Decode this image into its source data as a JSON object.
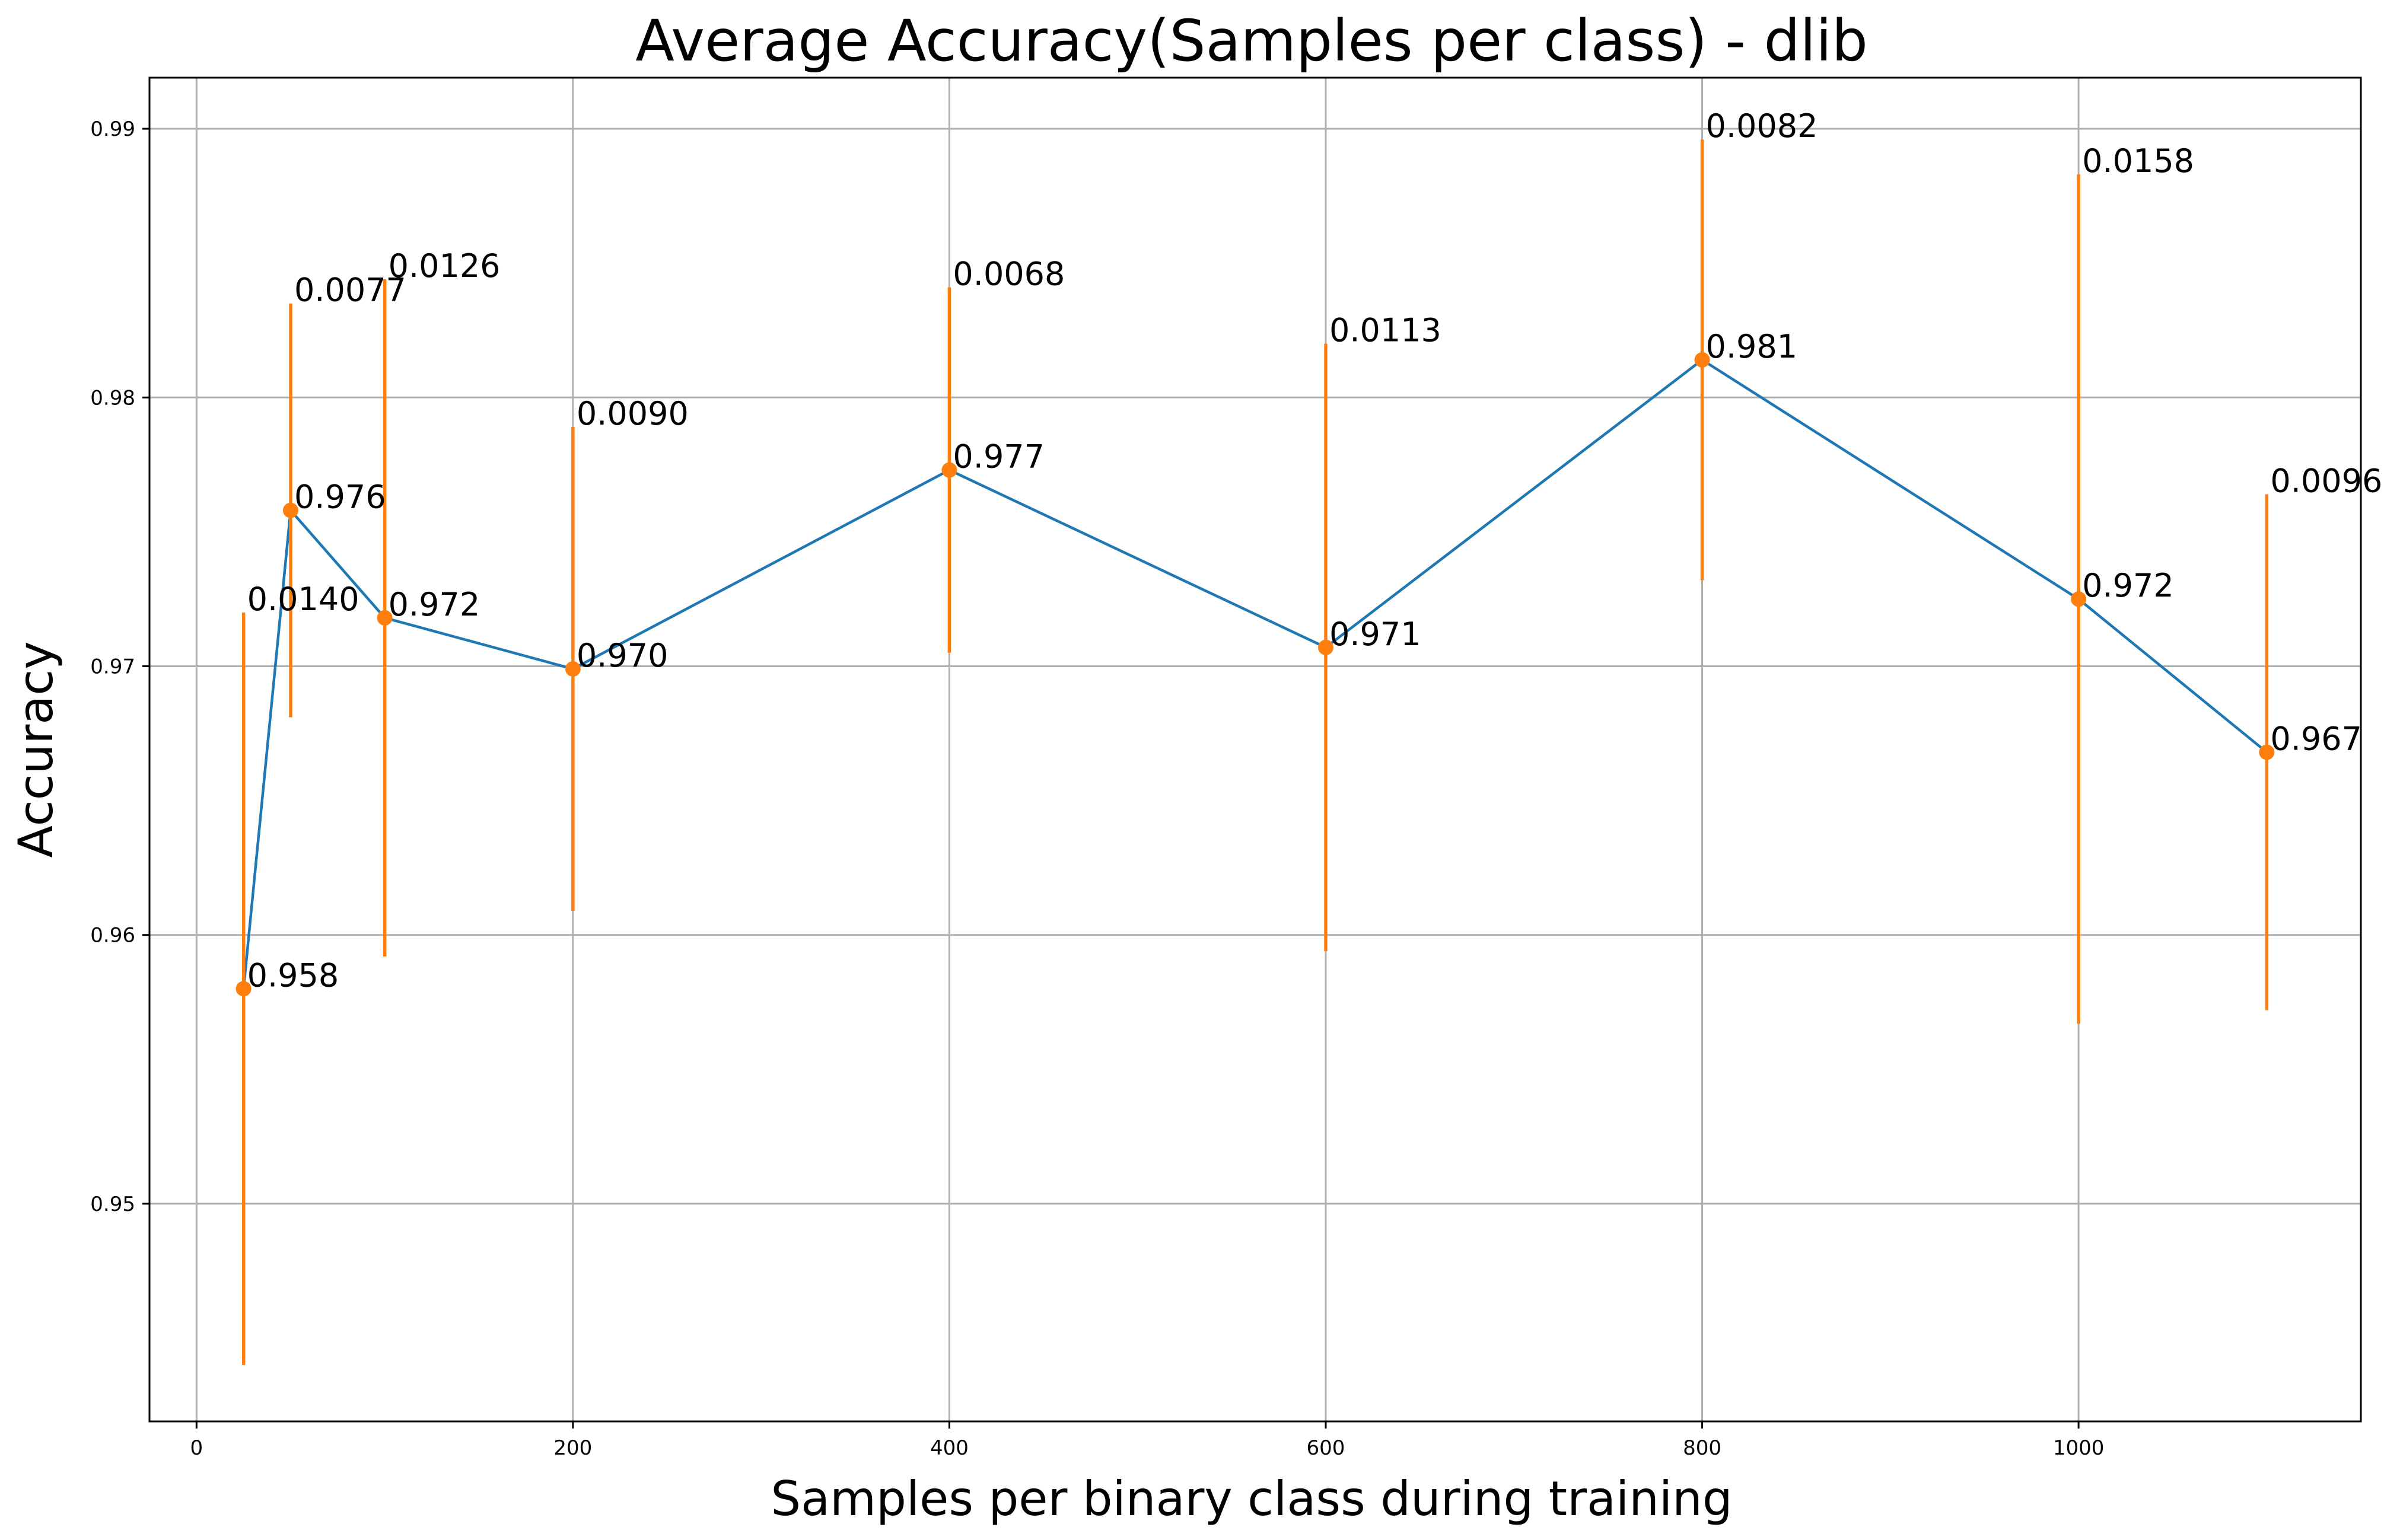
{
  "chart_data": {
    "type": "line",
    "title": "Average Accuracy(Samples per class) - dlib",
    "xlabel": "Samples per binary class during training",
    "ylabel": "Accuracy",
    "xlim": [
      -25,
      1150
    ],
    "ylim": [
      0.9419,
      0.9919
    ],
    "x_ticks": [
      0,
      200,
      400,
      600,
      800,
      1000
    ],
    "x_tick_labels": [
      "0",
      "200",
      "400",
      "600",
      "800",
      "1000"
    ],
    "y_ticks": [
      0.95,
      0.96,
      0.97,
      0.98,
      0.99
    ],
    "y_tick_labels": [
      "0.95",
      "0.96",
      "0.97",
      "0.98",
      "0.99"
    ],
    "grid": true,
    "line_color": "#1f77b4",
    "marker_color": "#ff7f0e",
    "errorbar_color": "#ff7f0e",
    "series": [
      {
        "x": [
          25,
          50,
          100,
          200,
          400,
          600,
          800,
          1000,
          1100
        ],
        "y": [
          0.958,
          0.9758,
          0.9718,
          0.9699,
          0.9773,
          0.9707,
          0.9814,
          0.9725,
          0.9668
        ],
        "error": [
          0.014,
          0.0077,
          0.0126,
          0.009,
          0.0068,
          0.0113,
          0.0082,
          0.0158,
          0.0096
        ],
        "value_labels": [
          "0.958",
          "0.976",
          "0.972",
          "0.970",
          "0.977",
          "0.971",
          "0.981",
          "0.972",
          "0.967"
        ],
        "error_labels": [
          "0.0140",
          "0.0077",
          "0.0126",
          "0.0090",
          "0.0068",
          "0.0113",
          "0.0082",
          "0.0158",
          "0.0096"
        ]
      }
    ]
  }
}
